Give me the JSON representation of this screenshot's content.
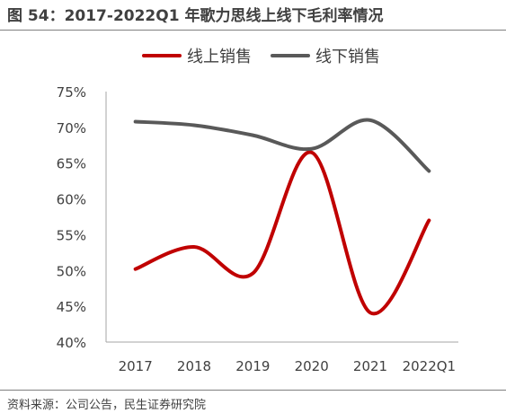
{
  "figure": {
    "title": "图 54：2017-2022Q1 年歌力思线上线下毛利率情况",
    "source": "资料来源：公司公告，民生证券研究院"
  },
  "chart_data": {
    "type": "line",
    "categories": [
      "2017",
      "2018",
      "2019",
      "2020",
      "2021",
      "2022Q1"
    ],
    "series": [
      {
        "name": "线上销售",
        "color": "#c00000",
        "values": [
          50.2,
          53.3,
          49.6,
          66.5,
          44.1,
          57.0
        ]
      },
      {
        "name": "线下销售",
        "color": "#595959",
        "values": [
          70.8,
          70.3,
          68.9,
          67.0,
          71.0,
          63.9
        ]
      }
    ],
    "ylim": [
      40,
      75
    ],
    "yticks": [
      "40%",
      "45%",
      "50%",
      "55%",
      "60%",
      "65%",
      "70%",
      "75%"
    ],
    "y_tick_values": [
      40,
      45,
      50,
      55,
      60,
      65,
      70,
      75
    ],
    "legend": "top-center",
    "grid": false,
    "smooth": true
  }
}
